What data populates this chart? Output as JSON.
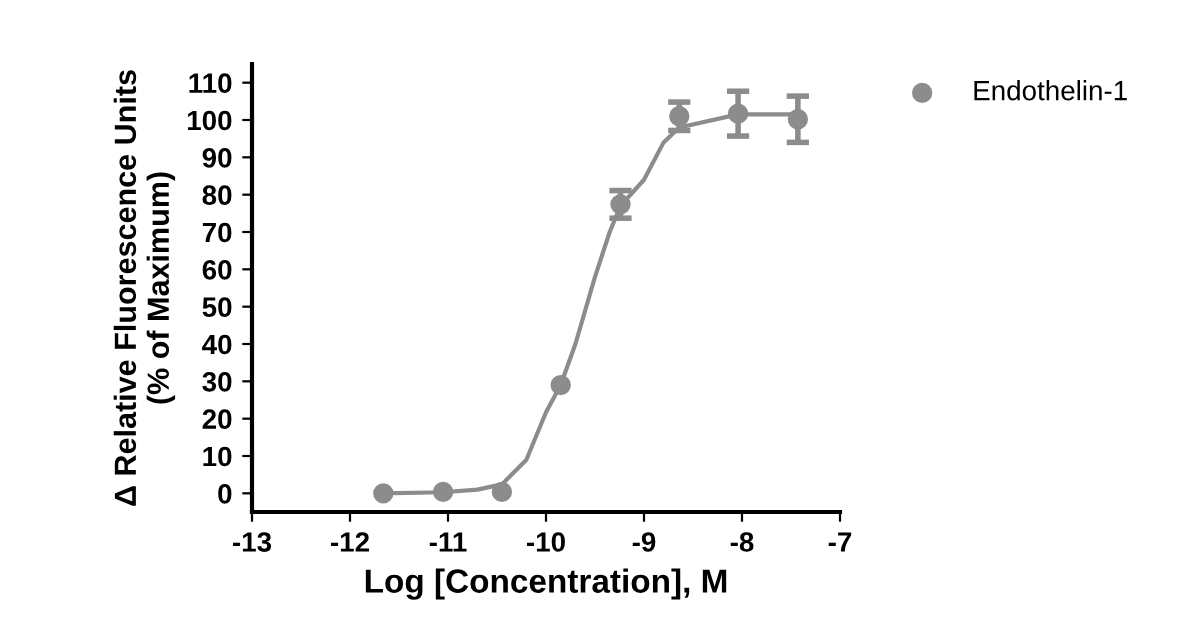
{
  "chart_data": {
    "type": "scatter",
    "xlabel": "Log [Concentration], M",
    "ylabel": "Δ Relative Fluorescence Units\n(% of Maximum)",
    "series": [
      {
        "name": "Endothelin-1",
        "color": "#8c8c8c",
        "marker": "circle",
        "x": [
          -11.66,
          -11.05,
          -10.45,
          -9.85,
          -9.24,
          -8.64,
          -8.04,
          -7.43
        ],
        "values": [
          0,
          0.4,
          0.4,
          29,
          77.4,
          101,
          101.7,
          100.2
        ],
        "errors": [
          null,
          null,
          null,
          null,
          3.7,
          3.8,
          6,
          6.2
        ]
      },
      {
        "type": "line",
        "color": "#8c8c8c",
        "line_style": "solid",
        "x": [
          -11.66,
          -11.05,
          -10.7,
          -10.45,
          -10.2,
          -10.0,
          -9.85,
          -9.7,
          -9.5,
          -9.35,
          -9.24,
          -9.0,
          -8.8,
          -8.64,
          -8.04,
          -7.43
        ],
        "values": [
          0,
          0.3,
          1,
          2.4,
          9,
          21.7,
          29,
          40,
          58,
          70,
          77,
          84,
          94,
          98,
          101.5,
          101.5
        ]
      }
    ],
    "xlim": [
      -13,
      -7
    ],
    "xticks": [
      -13,
      -12,
      -11,
      -10,
      -9,
      -8,
      -7
    ],
    "ylim": [
      -5,
      115
    ],
    "yticks": [
      0,
      10,
      20,
      30,
      40,
      50,
      60,
      70,
      80,
      90,
      100,
      110
    ],
    "grid": false,
    "legend": "right"
  }
}
